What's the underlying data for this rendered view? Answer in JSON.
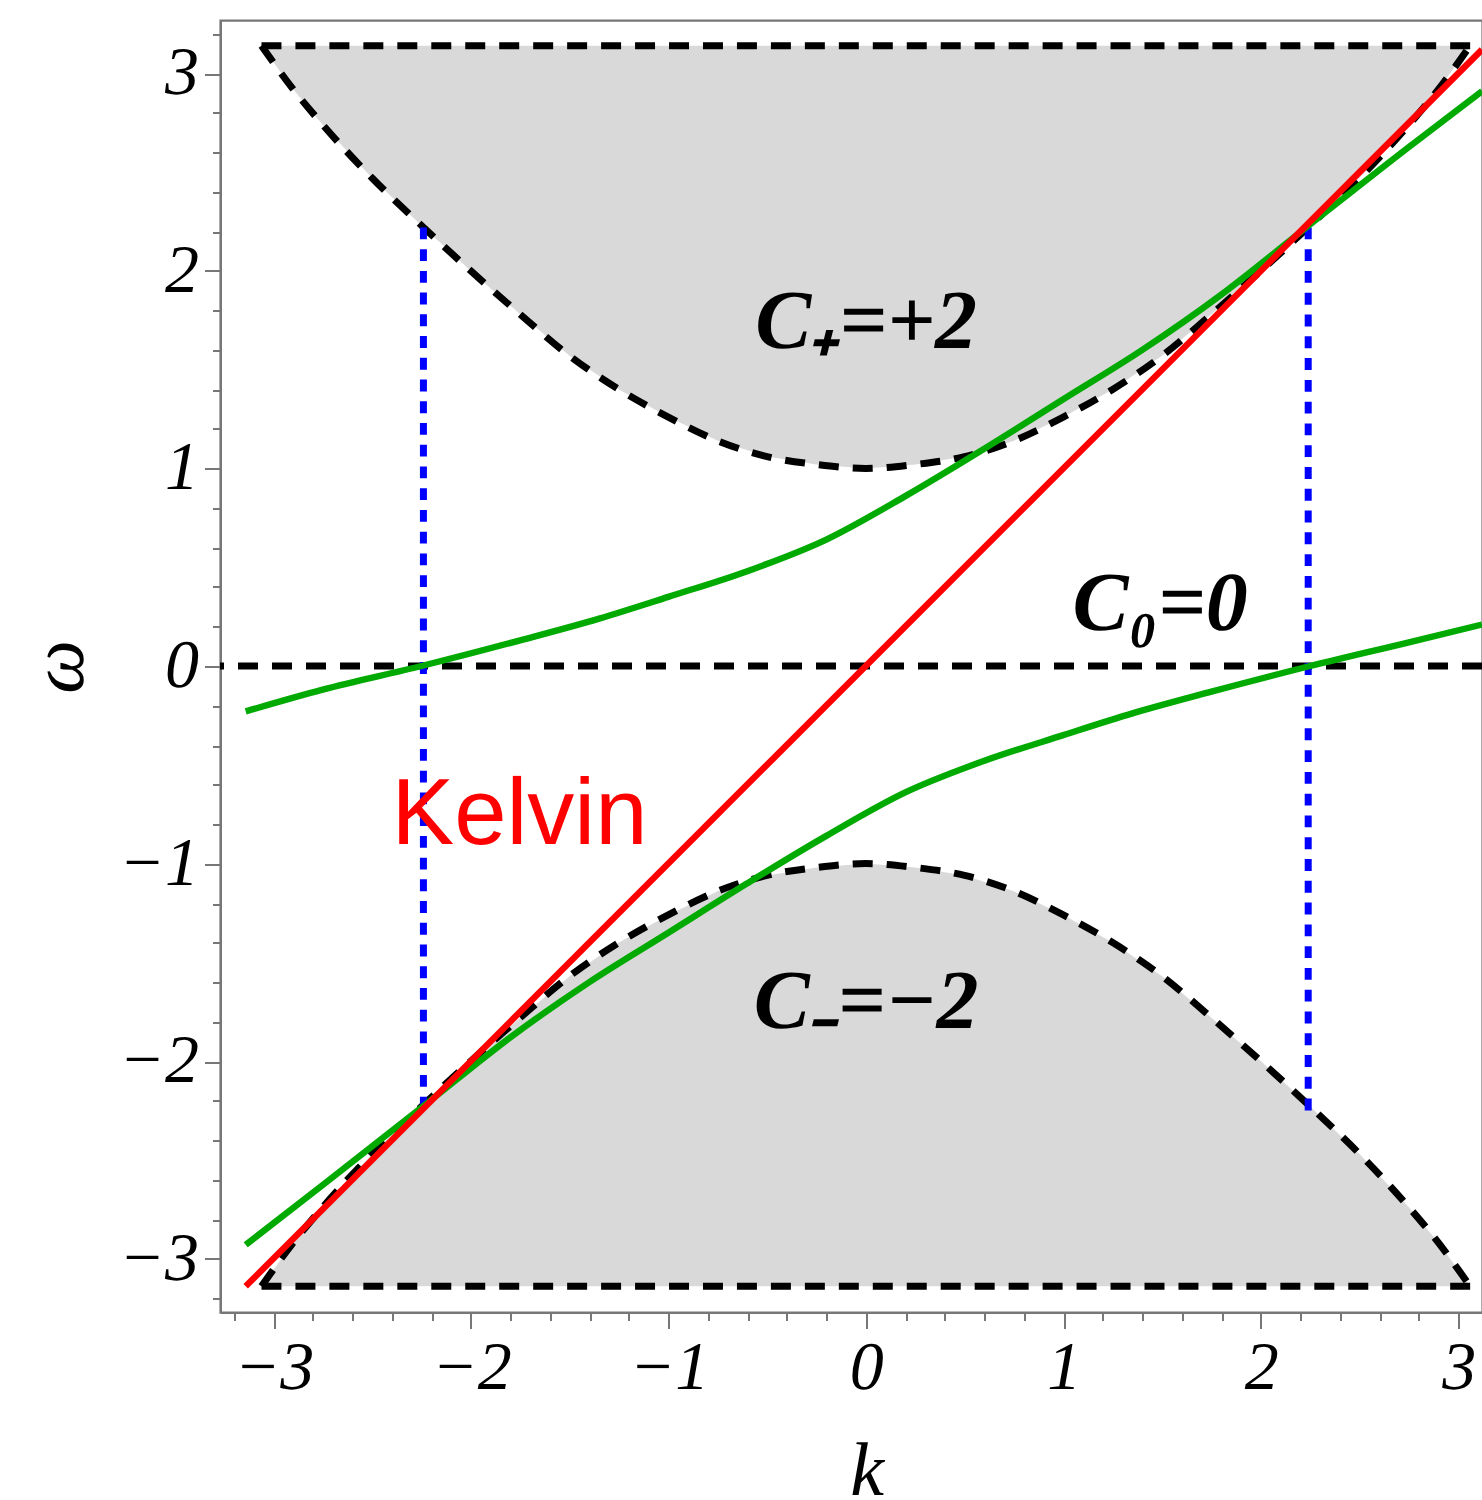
{
  "chart_data": {
    "type": "line",
    "xlabel": "k",
    "ylabel": "ω",
    "xlim": [
      -3.27,
      3.12
    ],
    "ylim": [
      -3.27,
      3.27
    ],
    "xticks": [
      {
        "value": -3.2,
        "label": null
      },
      -3,
      {
        "value": -2.8,
        "label": null
      },
      {
        "value": -2.6,
        "label": null
      },
      {
        "value": -2.4,
        "label": null
      },
      {
        "value": -2.2,
        "label": null
      },
      -2,
      {
        "value": -1.8,
        "label": null
      },
      {
        "value": -1.6,
        "label": null
      },
      {
        "value": -1.4,
        "label": null
      },
      {
        "value": -1.2,
        "label": null
      },
      -1,
      {
        "value": -0.8,
        "label": null
      },
      {
        "value": -0.6,
        "label": null
      },
      {
        "value": -0.4,
        "label": null
      },
      {
        "value": -0.2,
        "label": null
      },
      0,
      {
        "value": 0.2,
        "label": null
      },
      {
        "value": 0.4,
        "label": null
      },
      {
        "value": 0.6,
        "label": null
      },
      {
        "value": 0.8,
        "label": null
      },
      1,
      {
        "value": 1.2,
        "label": null
      },
      {
        "value": 1.4,
        "label": null
      },
      {
        "value": 1.6,
        "label": null
      },
      {
        "value": 1.8,
        "label": null
      },
      2,
      {
        "value": 2.2,
        "label": null
      },
      {
        "value": 2.4,
        "label": null
      },
      {
        "value": 2.6,
        "label": null
      },
      {
        "value": 2.8,
        "label": null
      },
      3
    ],
    "yticks": [
      {
        "value": -3.2,
        "label": null
      },
      -3,
      {
        "value": -2.8,
        "label": null
      },
      {
        "value": -2.6,
        "label": null
      },
      {
        "value": -2.4,
        "label": null
      },
      {
        "value": -2.2,
        "label": null
      },
      -2,
      {
        "value": -1.8,
        "label": null
      },
      {
        "value": -1.6,
        "label": null
      },
      {
        "value": -1.4,
        "label": null
      },
      {
        "value": -1.2,
        "label": null
      },
      -1,
      {
        "value": -0.8,
        "label": null
      },
      {
        "value": -0.6,
        "label": null
      },
      {
        "value": -0.4,
        "label": null
      },
      {
        "value": -0.2,
        "label": null
      },
      0,
      {
        "value": 0.2,
        "label": null
      },
      {
        "value": 0.4,
        "label": null
      },
      {
        "value": 0.6,
        "label": null
      },
      {
        "value": 0.8,
        "label": null
      },
      1,
      {
        "value": 1.2,
        "label": null
      },
      {
        "value": 1.4,
        "label": null
      },
      {
        "value": 1.6,
        "label": null
      },
      {
        "value": 1.8,
        "label": null
      },
      2,
      {
        "value": 2.2,
        "label": null
      },
      {
        "value": 2.4,
        "label": null
      },
      {
        "value": 2.6,
        "label": null
      },
      {
        "value": 2.8,
        "label": null
      },
      3,
      {
        "value": 3.2,
        "label": null
      }
    ],
    "series": [
      {
        "line_style": "dashed",
        "color": "#000000",
        "x": [
          -3.06,
          -2.9,
          -2.75,
          -2.5,
          -2.25,
          -2.0,
          -1.75,
          -1.5,
          -1.25,
          -1.0,
          -0.75,
          -0.5,
          -0.25,
          0,
          0.25,
          0.5,
          0.75,
          1.0,
          1.25,
          1.5,
          1.75,
          2.0,
          2.25,
          2.5,
          2.75,
          2.9,
          3.06
        ],
        "values": [
          3.14,
          2.92,
          2.74,
          2.47,
          2.23,
          2.0,
          1.78,
          1.57,
          1.4,
          1.26,
          1.14,
          1.06,
          1.02,
          1.0,
          1.02,
          1.06,
          1.14,
          1.26,
          1.4,
          1.57,
          1.78,
          2.0,
          2.23,
          2.47,
          2.74,
          2.92,
          3.14
        ],
        "lower": [
          3.14,
          2.92,
          2.74,
          2.47,
          2.23,
          2.0,
          1.78,
          1.57,
          1.4,
          1.26,
          1.14,
          1.06,
          1.02,
          1.0,
          1.02,
          1.06,
          1.14,
          1.26,
          1.4,
          1.57,
          1.78,
          2.0,
          2.23,
          2.47,
          2.74,
          2.92,
          3.14
        ],
        "upper": [
          3.14,
          3.14,
          3.14,
          3.14,
          3.14,
          3.14,
          3.14,
          3.14,
          3.14,
          3.14,
          3.14,
          3.14,
          3.14,
          3.14,
          3.14,
          3.14,
          3.14,
          3.14,
          3.14,
          3.14,
          3.14,
          3.14,
          3.14,
          3.14,
          3.14,
          3.14,
          3.14
        ]
      },
      {
        "line_style": "dashed",
        "color": "#000000",
        "x": [
          -3.06,
          -2.9,
          -2.75,
          -2.5,
          -2.25,
          -2.0,
          -1.75,
          -1.5,
          -1.25,
          -1.0,
          -0.75,
          -0.5,
          -0.25,
          0,
          0.25,
          0.5,
          0.75,
          1.0,
          1.25,
          1.5,
          1.75,
          2.0,
          2.25,
          2.5,
          2.75,
          2.9,
          3.06
        ],
        "values": [
          -3.14,
          -2.92,
          -2.74,
          -2.47,
          -2.23,
          -2.0,
          -1.78,
          -1.57,
          -1.4,
          -1.26,
          -1.14,
          -1.06,
          -1.02,
          -1.0,
          -1.02,
          -1.06,
          -1.14,
          -1.26,
          -1.4,
          -1.57,
          -1.78,
          -2.0,
          -2.23,
          -2.47,
          -2.74,
          -2.92,
          -3.14
        ],
        "lower": [
          -3.14,
          -3.14,
          -3.14,
          -3.14,
          -3.14,
          -3.14,
          -3.14,
          -3.14,
          -3.14,
          -3.14,
          -3.14,
          -3.14,
          -3.14,
          -3.14,
          -3.14,
          -3.14,
          -3.14,
          -3.14,
          -3.14,
          -3.14,
          -3.14,
          -3.14,
          -3.14,
          -3.14,
          -3.14,
          -3.14,
          -3.14
        ],
        "upper": [
          -3.14,
          -2.92,
          -2.74,
          -2.47,
          -2.23,
          -2.0,
          -1.78,
          -1.57,
          -1.4,
          -1.26,
          -1.14,
          -1.06,
          -1.02,
          -1.0,
          -1.02,
          -1.06,
          -1.14,
          -1.26,
          -1.4,
          -1.57,
          -1.78,
          -2.0,
          -2.23,
          -2.47,
          -2.74,
          -2.92,
          -3.14
        ]
      },
      {
        "line_style": "dashed",
        "color": "#000000",
        "x": [
          -3.06,
          3.06
        ],
        "values": [
          3.14,
          3.14
        ]
      },
      {
        "line_style": "dashed",
        "color": "#000000",
        "x": [
          -3.06,
          3.06
        ],
        "values": [
          -3.14,
          -3.14
        ]
      },
      {
        "line_style": "dotted",
        "color": "#0000ff",
        "x": [
          -2.24,
          -2.24
        ],
        "values": [
          -2.24,
          2.22
        ]
      },
      {
        "line_style": "dotted",
        "color": "#0000ff",
        "x": [
          2.24,
          2.24
        ],
        "values": [
          -2.25,
          2.22
        ]
      },
      {
        "line_style": "solid",
        "color": "#00aa00",
        "x": [
          -3.14,
          -2.75,
          -2.25,
          -1.75,
          -1.35,
          -1.0,
          -0.6,
          -0.2,
          0.2,
          0.6,
          1.0,
          1.4,
          1.8,
          2.23,
          2.74,
          3.12
        ],
        "values": [
          -0.23,
          -0.12,
          0,
          0.13,
          0.24,
          0.35,
          0.48,
          0.64,
          0.86,
          1.1,
          1.35,
          1.6,
          1.88,
          2.22,
          2.62,
          2.91
        ]
      },
      {
        "line_style": "solid",
        "color": "#00aa00",
        "x": [
          -3.14,
          -2.74,
          -2.23,
          -1.8,
          -1.4,
          -1.0,
          -0.6,
          -0.2,
          0.2,
          0.6,
          1.0,
          1.35,
          1.75,
          2.25,
          2.75,
          3.12
        ],
        "values": [
          -2.93,
          -2.62,
          -2.22,
          -1.88,
          -1.6,
          -1.35,
          -1.1,
          -0.86,
          -0.64,
          -0.48,
          -0.35,
          -0.24,
          -0.13,
          0,
          0.12,
          0.21
        ]
      },
      {
        "name": "Kelvin",
        "line_style": "solid",
        "color": "#ff0000",
        "x": [
          -3.14,
          3.12
        ],
        "values": [
          -3.14,
          3.12
        ]
      }
    ],
    "ref_lines": [
      {
        "axis": "y",
        "value": 0,
        "label": "C₀=0",
        "color": "#000000",
        "line_style": "dashed"
      }
    ],
    "annotations": [
      "C₊=+2",
      "C₋=−2"
    ]
  }
}
